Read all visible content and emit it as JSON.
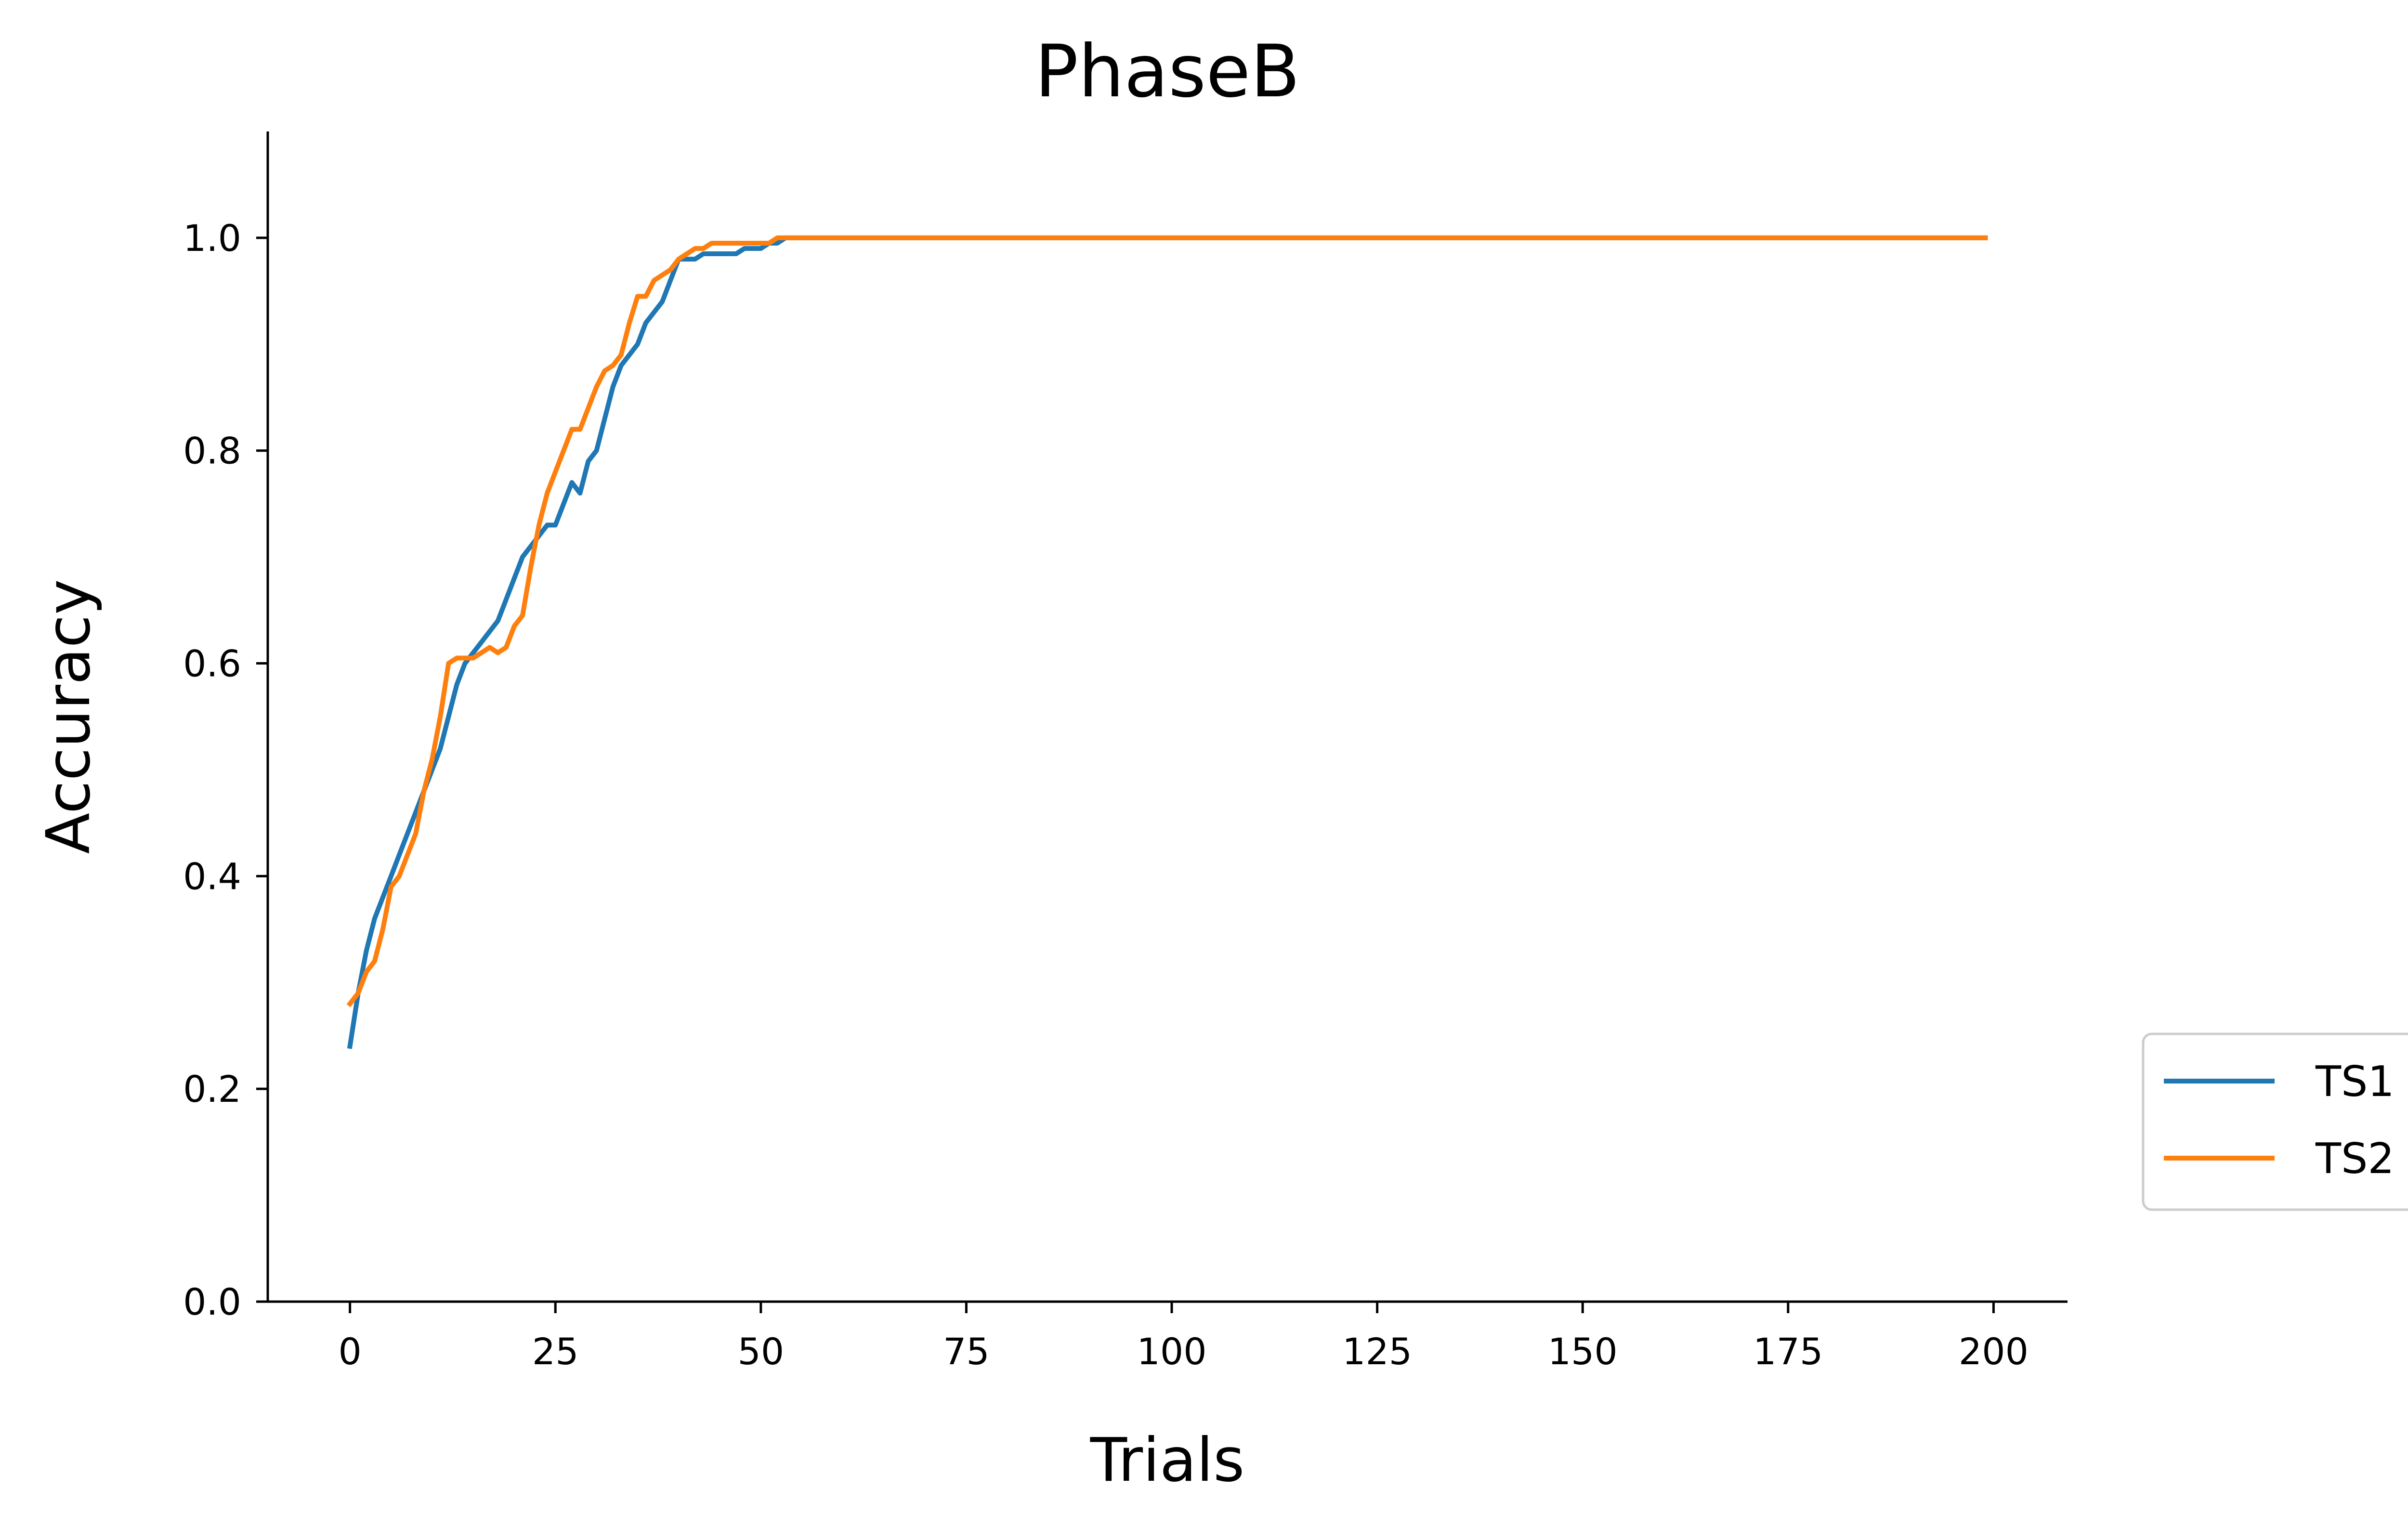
{
  "chart_data": {
    "type": "line",
    "title": "PhaseB",
    "xlabel": "Trials",
    "ylabel": "Accuracy",
    "xlim": [
      -10,
      209
    ],
    "ylim": [
      0.0,
      1.1
    ],
    "xticks": [
      0,
      25,
      50,
      75,
      100,
      125,
      150,
      175,
      200
    ],
    "yticks": [
      0.0,
      0.2,
      0.4,
      0.6,
      0.8,
      1.0
    ],
    "xtick_labels": [
      "0",
      "25",
      "50",
      "75",
      "100",
      "125",
      "150",
      "175",
      "200"
    ],
    "ytick_labels": [
      "0.0",
      "0.2",
      "0.4",
      "0.6",
      "0.8",
      "1.0"
    ],
    "grid": false,
    "legend_position": "outside-right",
    "series": [
      {
        "name": "TS1",
        "color": "#1f77b4",
        "x": [
          0,
          1,
          2,
          3,
          4,
          5,
          6,
          7,
          8,
          9,
          10,
          11,
          12,
          13,
          14,
          15,
          16,
          17,
          18,
          19,
          20,
          21,
          22,
          23,
          24,
          25,
          26,
          27,
          28,
          29,
          30,
          31,
          32,
          33,
          34,
          35,
          36,
          37,
          38,
          39,
          40,
          41,
          42,
          43,
          44,
          45,
          46,
          47,
          48,
          49,
          50,
          51,
          52,
          53,
          54,
          55,
          56,
          57,
          58,
          59,
          60,
          61,
          62,
          199
        ],
        "y": [
          0.24,
          0.29,
          0.33,
          0.36,
          0.38,
          0.4,
          0.42,
          0.44,
          0.46,
          0.48,
          0.5,
          0.52,
          0.55,
          0.58,
          0.6,
          0.61,
          0.62,
          0.63,
          0.64,
          0.66,
          0.68,
          0.7,
          0.71,
          0.72,
          0.73,
          0.73,
          0.75,
          0.77,
          0.76,
          0.79,
          0.8,
          0.83,
          0.86,
          0.88,
          0.89,
          0.9,
          0.92,
          0.93,
          0.94,
          0.96,
          0.98,
          0.98,
          0.98,
          0.985,
          0.985,
          0.985,
          0.985,
          0.985,
          0.99,
          0.99,
          0.99,
          0.995,
          0.995,
          1.0,
          1.0,
          1.0,
          1.0,
          1.0,
          1.0,
          1.0,
          1.0,
          1.0,
          1.0,
          1.0
        ]
      },
      {
        "name": "TS2",
        "color": "#ff7f0e",
        "x": [
          0,
          1,
          2,
          3,
          4,
          5,
          6,
          7,
          8,
          9,
          10,
          11,
          12,
          13,
          14,
          15,
          16,
          17,
          18,
          19,
          20,
          21,
          22,
          23,
          24,
          25,
          26,
          27,
          28,
          29,
          30,
          31,
          32,
          33,
          34,
          35,
          36,
          37,
          38,
          39,
          40,
          41,
          42,
          43,
          44,
          45,
          46,
          47,
          48,
          49,
          50,
          51,
          52,
          53,
          54,
          55,
          56,
          57,
          58,
          59,
          60,
          61,
          62,
          199
        ],
        "y": [
          0.28,
          0.29,
          0.31,
          0.32,
          0.35,
          0.39,
          0.4,
          0.42,
          0.44,
          0.48,
          0.51,
          0.55,
          0.6,
          0.605,
          0.605,
          0.605,
          0.61,
          0.615,
          0.61,
          0.615,
          0.635,
          0.645,
          0.69,
          0.73,
          0.76,
          0.78,
          0.8,
          0.82,
          0.82,
          0.84,
          0.86,
          0.875,
          0.88,
          0.89,
          0.92,
          0.945,
          0.945,
          0.96,
          0.965,
          0.97,
          0.98,
          0.985,
          0.99,
          0.99,
          0.995,
          0.995,
          0.995,
          0.995,
          0.995,
          0.995,
          0.995,
          0.995,
          1.0,
          1.0,
          1.0,
          1.0,
          1.0,
          1.0,
          1.0,
          1.0,
          1.0,
          1.0,
          1.0,
          1.0
        ]
      }
    ]
  }
}
